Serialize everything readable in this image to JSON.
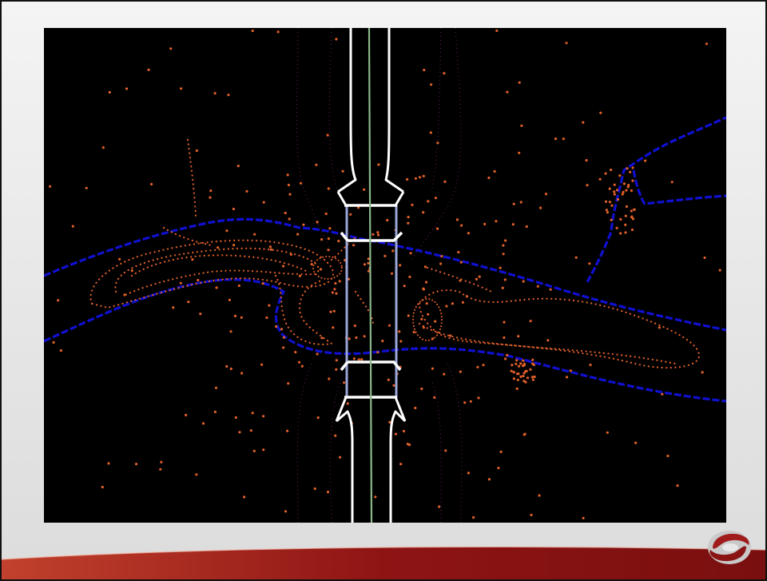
{
  "slide": {
    "background": "#e8e8e8",
    "frame_color": "#111111"
  },
  "plot": {
    "background": "#000000",
    "colors": {
      "road_edge": "#ffffff",
      "centerline": "#8ab88a",
      "bridge_deck": "#9aa6d8",
      "river_bank": "#1010d0",
      "survey_points": "#e0602a",
      "contour": "#6a1f6a"
    }
  },
  "branding": {
    "swoosh_color": "#9c1b1b",
    "logo_icon": "company-logo-icon",
    "logo_colors": [
      "#a01c1c",
      "#8a8a8a"
    ]
  }
}
